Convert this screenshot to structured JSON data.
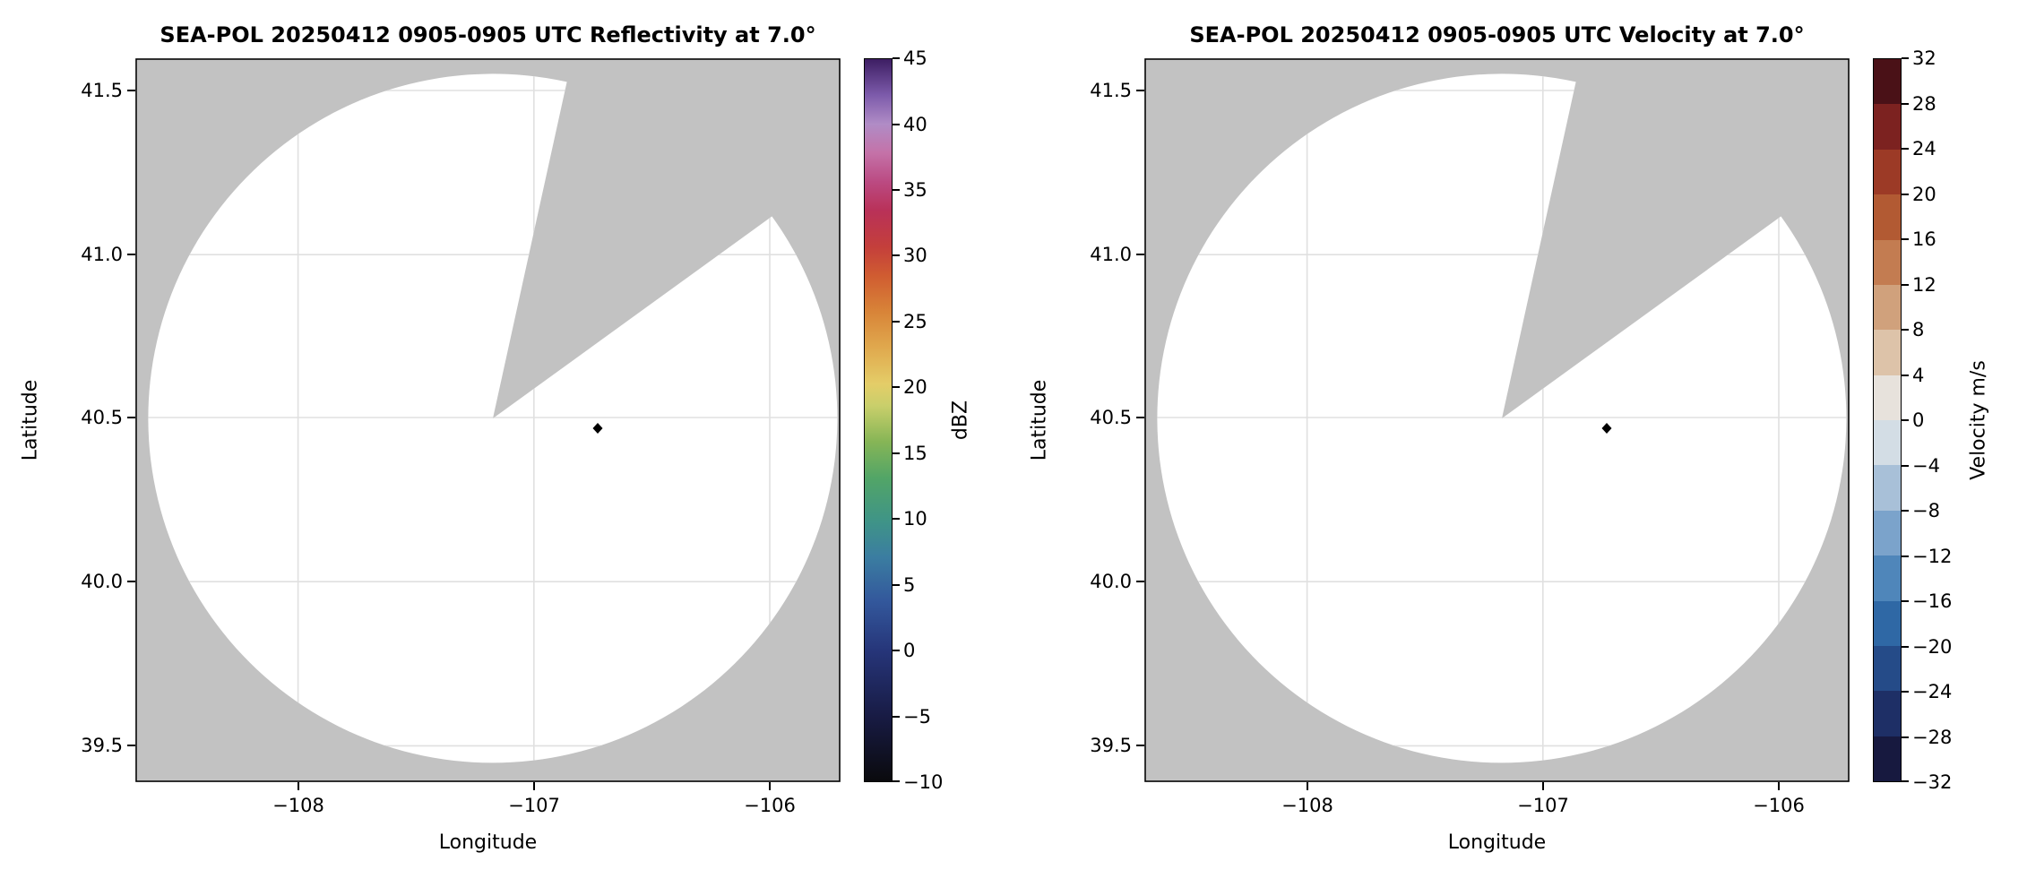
{
  "colors": {
    "background": "#ffffff",
    "mask": "#c2c2c2",
    "scan_area": "#ffffff",
    "grid": "#e0e0e0",
    "spine": "#000000",
    "marker": "#000000"
  },
  "panels": [
    {
      "title": "SEA-POL 20250412 0905-0905 UTC Reflectivity at 7.0°",
      "xlabel": "Longitude",
      "ylabel": "Latitude",
      "xticks": [
        "−108",
        "−107",
        "−106"
      ],
      "yticks": [
        "41.5",
        "41.0",
        "40.5",
        "40.0",
        "39.5"
      ],
      "colorbar": {
        "label": "dBZ",
        "ticks": [
          "45",
          "40",
          "35",
          "30",
          "25",
          "20",
          "15",
          "10",
          "5",
          "0",
          "−5",
          "−10"
        ],
        "gradient_stops": [
          [
            0,
            "#0a0a0d"
          ],
          [
            9,
            "#181b44"
          ],
          [
            18,
            "#263579"
          ],
          [
            25,
            "#33589c"
          ],
          [
            31,
            "#3b7da1"
          ],
          [
            36,
            "#3f9487"
          ],
          [
            42,
            "#52a567"
          ],
          [
            47,
            "#86b556"
          ],
          [
            52,
            "#c9cf6b"
          ],
          [
            55,
            "#e4cd68"
          ],
          [
            60,
            "#e0a94e"
          ],
          [
            65,
            "#d88438"
          ],
          [
            70,
            "#d05c31"
          ],
          [
            74,
            "#c43f3b"
          ],
          [
            79,
            "#b93158"
          ],
          [
            83,
            "#bb4a82"
          ],
          [
            87,
            "#c472a8"
          ],
          [
            91,
            "#b08cc6"
          ],
          [
            95,
            "#7d5bab"
          ],
          [
            100,
            "#3d1e63"
          ]
        ]
      }
    },
    {
      "title": "SEA-POL 20250412 0905-0905 UTC Velocity at 7.0°",
      "xlabel": "Longitude",
      "ylabel": "Latitude",
      "xticks": [
        "−108",
        "−107",
        "−106"
      ],
      "yticks": [
        "41.5",
        "41.0",
        "40.5",
        "40.0",
        "39.5"
      ],
      "colorbar": {
        "label": "Velocity m/s",
        "ticks": [
          "32",
          "28",
          "24",
          "20",
          "16",
          "12",
          "8",
          "4",
          "0",
          "−4",
          "−8",
          "−12",
          "−16",
          "−20",
          "−24",
          "−28",
          "−32"
        ],
        "segment_colors": [
          "#17193f",
          "#1e2f66",
          "#254b88",
          "#2f68a5",
          "#4f86ba",
          "#7ba3cb",
          "#a8c0d8",
          "#d3dde5",
          "#e7e2dc",
          "#ddc3a9",
          "#d0a17c",
          "#c37c51",
          "#b25a33",
          "#9c3a26",
          "#7c2220",
          "#4a1117"
        ]
      }
    }
  ],
  "chart_data": [
    {
      "type": "heatmap",
      "title": "SEA-POL 20250412 0905-0905 UTC Reflectivity at 7.0°",
      "xlabel": "Longitude",
      "ylabel": "Latitude",
      "xlim": [
        -108.69,
        -105.7
      ],
      "ylim": [
        39.39,
        41.6
      ],
      "xticks": [
        -108,
        -107,
        -106
      ],
      "yticks": [
        39.5,
        40.0,
        40.5,
        41.0,
        41.5
      ],
      "grid": true,
      "colorbar": {
        "label": "dBZ",
        "min": -10,
        "max": 45,
        "tick_step": 5,
        "style": "continuous"
      },
      "radar_scan": {
        "center_lon": -107.17,
        "center_lat": 40.5,
        "radius_deg_lat": 1.05,
        "missing_sector_azimuth_deg": [
          12,
          54
        ]
      },
      "site_marker": {
        "lon": -106.73,
        "lat": 40.47,
        "shape": "diamond",
        "color": "#000000"
      },
      "data_note": "scan region shows no echo values (blank white); area outside scan masked gray"
    },
    {
      "type": "heatmap",
      "title": "SEA-POL 20250412 0905-0905 UTC Velocity at 7.0°",
      "xlabel": "Longitude",
      "ylabel": "Latitude",
      "xlim": [
        -108.69,
        -105.7
      ],
      "ylim": [
        39.39,
        41.6
      ],
      "xticks": [
        -108,
        -107,
        -106
      ],
      "yticks": [
        39.5,
        40.0,
        40.5,
        41.0,
        41.5
      ],
      "grid": true,
      "colorbar": {
        "label": "Velocity m/s",
        "min": -32,
        "max": 32,
        "tick_step": 4,
        "style": "discrete",
        "n_segments": 16
      },
      "radar_scan": {
        "center_lon": -107.17,
        "center_lat": 40.5,
        "radius_deg_lat": 1.05,
        "missing_sector_azimuth_deg": [
          12,
          54
        ]
      },
      "site_marker": {
        "lon": -106.73,
        "lat": 40.47,
        "shape": "diamond",
        "color": "#000000"
      },
      "data_note": "scan region shows no velocity values (blank white); area outside scan masked gray"
    }
  ]
}
